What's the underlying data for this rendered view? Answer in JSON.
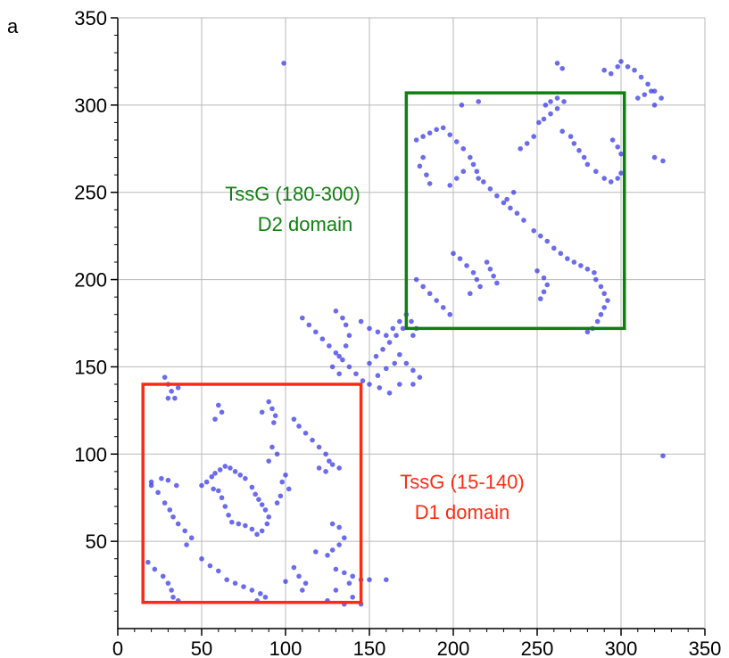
{
  "panel_label": "a",
  "chart_data": {
    "type": "scatter",
    "title": "",
    "xlabel": "",
    "ylabel": "",
    "xlim": [
      0,
      350
    ],
    "ylim": [
      0,
      350
    ],
    "xticks": [
      0,
      50,
      100,
      150,
      200,
      250,
      300,
      350
    ],
    "yticks": [
      50,
      100,
      150,
      200,
      250,
      300,
      350
    ],
    "grid": true,
    "point_color": "#3a3ae8",
    "domains": [
      {
        "name": "D1 domain",
        "label_line1": "TssG (15-140)",
        "label_line2": "D1 domain",
        "x_range": [
          15,
          145
        ],
        "y_range": [
          15,
          140
        ],
        "color": "#ff2a12"
      },
      {
        "name": "D2 domain",
        "label_line1": "TssG (180-300)",
        "label_line2": "D2 domain",
        "x_range": [
          172,
          302
        ],
        "y_range": [
          172,
          307
        ],
        "color": "#0f7f0f"
      }
    ],
    "point_clusters": [
      [
        [
          50,
          82
        ],
        [
          53,
          84
        ],
        [
          56,
          87
        ],
        [
          58,
          89
        ],
        [
          61,
          91
        ],
        [
          64,
          93
        ],
        [
          67,
          92
        ],
        [
          70,
          90
        ],
        [
          73,
          88
        ],
        [
          76,
          86
        ],
        [
          80,
          81
        ],
        [
          82,
          77
        ],
        [
          84,
          74
        ],
        [
          86,
          71
        ],
        [
          88,
          68
        ],
        [
          90,
          64
        ],
        [
          89,
          60
        ],
        [
          86,
          56
        ],
        [
          83,
          54
        ],
        [
          80,
          57
        ],
        [
          76,
          59
        ],
        [
          72,
          60
        ],
        [
          68,
          61
        ],
        [
          66,
          65
        ],
        [
          64,
          70
        ],
        [
          62,
          75
        ],
        [
          60,
          79
        ],
        [
          57,
          80
        ]
      ],
      [
        [
          50,
          40
        ],
        [
          55,
          36
        ],
        [
          60,
          33
        ],
        [
          65,
          28
        ],
        [
          70,
          26
        ],
        [
          75,
          24
        ],
        [
          80,
          22
        ],
        [
          85,
          20
        ],
        [
          88,
          18
        ],
        [
          83,
          16
        ]
      ],
      [
        [
          18,
          38
        ],
        [
          22,
          34
        ],
        [
          27,
          30
        ],
        [
          30,
          26
        ],
        [
          32,
          22
        ],
        [
          33,
          18
        ],
        [
          36,
          16
        ]
      ],
      [
        [
          20,
          82
        ],
        [
          24,
          78
        ],
        [
          28,
          72
        ],
        [
          31,
          68
        ],
        [
          33,
          64
        ],
        [
          36,
          60
        ],
        [
          40,
          56
        ],
        [
          44,
          52
        ],
        [
          41,
          48
        ]
      ],
      [
        [
          20,
          84
        ],
        [
          26,
          86
        ],
        [
          30,
          85
        ],
        [
          35,
          82
        ]
      ],
      [
        [
          28,
          144
        ],
        [
          30,
          140
        ],
        [
          32,
          136
        ],
        [
          34,
          132
        ],
        [
          36,
          138
        ],
        [
          30,
          132
        ]
      ],
      [
        [
          60,
          128
        ],
        [
          62,
          124
        ],
        [
          58,
          120
        ]
      ],
      [
        [
          90,
          130
        ],
        [
          92,
          126
        ],
        [
          94,
          122
        ],
        [
          93,
          118
        ],
        [
          86,
          124
        ]
      ],
      [
        [
          92,
          104
        ],
        [
          95,
          100
        ],
        [
          90,
          96
        ]
      ],
      [
        [
          100,
          88
        ],
        [
          98,
          84
        ],
        [
          102,
          80
        ],
        [
          97,
          76
        ],
        [
          95,
          72
        ]
      ],
      [
        [
          105,
          120
        ],
        [
          108,
          116
        ],
        [
          112,
          112
        ],
        [
          116,
          108
        ],
        [
          120,
          104
        ],
        [
          124,
          100
        ],
        [
          126,
          96
        ],
        [
          120,
          92
        ]
      ],
      [
        [
          128,
          94
        ],
        [
          132,
          92
        ],
        [
          124,
          90
        ]
      ],
      [
        [
          128,
          60
        ],
        [
          132,
          58
        ]
      ],
      [
        [
          130,
          34
        ],
        [
          135,
          32
        ],
        [
          140,
          30
        ],
        [
          145,
          28
        ],
        [
          138,
          26
        ],
        [
          150,
          28
        ]
      ],
      [
        [
          105,
          35
        ],
        [
          108,
          30
        ],
        [
          112,
          26
        ],
        [
          110,
          22
        ],
        [
          100,
          27
        ]
      ],
      [
        [
          135,
          52
        ],
        [
          132,
          48
        ],
        [
          128,
          45
        ],
        [
          125,
          42
        ],
        [
          118,
          44
        ]
      ],
      [
        [
          110,
          178
        ],
        [
          114,
          174
        ],
        [
          118,
          170
        ],
        [
          122,
          166
        ],
        [
          126,
          162
        ],
        [
          130,
          158
        ],
        [
          134,
          154
        ],
        [
          138,
          150
        ],
        [
          142,
          146
        ],
        [
          146,
          142
        ],
        [
          150,
          140
        ],
        [
          155,
          145
        ],
        [
          160,
          149
        ],
        [
          165,
          152
        ],
        [
          168,
          157
        ],
        [
          172,
          152
        ],
        [
          176,
          148
        ],
        [
          180,
          144
        ],
        [
          176,
          140
        ],
        [
          168,
          140
        ],
        [
          162,
          135
        ],
        [
          156,
          138
        ]
      ],
      [
        [
          130,
          182
        ],
        [
          134,
          178
        ],
        [
          136,
          174
        ],
        [
          138,
          168
        ],
        [
          136,
          162
        ],
        [
          132,
          156
        ],
        [
          128,
          150
        ],
        [
          132,
          146
        ]
      ],
      [
        [
          145,
          176
        ],
        [
          150,
          172
        ],
        [
          155,
          170
        ],
        [
          160,
          168
        ],
        [
          164,
          172
        ],
        [
          168,
          176
        ],
        [
          172,
          180
        ],
        [
          175,
          176
        ],
        [
          178,
          172
        ],
        [
          176,
          168
        ]
      ],
      [
        [
          150,
          152
        ],
        [
          154,
          156
        ],
        [
          158,
          160
        ],
        [
          162,
          164
        ],
        [
          166,
          168
        ],
        [
          170,
          172
        ]
      ],
      [
        [
          178,
          280
        ],
        [
          182,
          282
        ],
        [
          186,
          284
        ],
        [
          190,
          286
        ],
        [
          194,
          287
        ],
        [
          198,
          283
        ],
        [
          202,
          279
        ],
        [
          206,
          275
        ],
        [
          210,
          270
        ],
        [
          212,
          266
        ],
        [
          214,
          262
        ]
      ],
      [
        [
          182,
          270
        ],
        [
          180,
          265
        ],
        [
          184,
          260
        ],
        [
          186,
          255
        ]
      ],
      [
        [
          198,
          254
        ],
        [
          202,
          258
        ],
        [
          206,
          262
        ]
      ],
      [
        [
          215,
          258
        ],
        [
          218,
          256
        ],
        [
          222,
          252
        ],
        [
          226,
          248
        ],
        [
          230,
          244
        ],
        [
          234,
          241
        ],
        [
          238,
          238
        ],
        [
          242,
          234
        ]
      ],
      [
        [
          248,
          228
        ],
        [
          252,
          225
        ],
        [
          256,
          222
        ],
        [
          260,
          218
        ],
        [
          264,
          215
        ],
        [
          268,
          212
        ],
        [
          272,
          210
        ],
        [
          276,
          208
        ],
        [
          280,
          206
        ],
        [
          284,
          204
        ]
      ],
      [
        [
          178,
          200
        ],
        [
          182,
          196
        ],
        [
          186,
          192
        ],
        [
          190,
          188
        ],
        [
          194,
          184
        ],
        [
          198,
          180
        ]
      ],
      [
        [
          200,
          215
        ],
        [
          204,
          212
        ],
        [
          208,
          208
        ],
        [
          212,
          204
        ],
        [
          214,
          200
        ],
        [
          216,
          196
        ],
        [
          210,
          192
        ]
      ],
      [
        [
          220,
          210
        ],
        [
          222,
          206
        ],
        [
          224,
          202
        ],
        [
          226,
          198
        ]
      ],
      [
        [
          250,
          205
        ],
        [
          254,
          201
        ],
        [
          256,
          197
        ],
        [
          254,
          193
        ],
        [
          252,
          189
        ]
      ],
      [
        [
          255,
          300
        ],
        [
          258,
          302
        ],
        [
          262,
          304
        ],
        [
          266,
          302
        ],
        [
          262,
          298
        ],
        [
          258,
          295
        ],
        [
          254,
          292
        ],
        [
          251,
          290
        ]
      ],
      [
        [
          265,
          285
        ],
        [
          270,
          282
        ],
        [
          272,
          278
        ],
        [
          275,
          274
        ],
        [
          278,
          270
        ],
        [
          280,
          266
        ],
        [
          285,
          262
        ],
        [
          290,
          258
        ],
        [
          294,
          256
        ],
        [
          298,
          258
        ],
        [
          300,
          261
        ]
      ],
      [
        [
          295,
          280
        ],
        [
          298,
          276
        ],
        [
          300,
          272
        ]
      ],
      [
        [
          285,
          200
        ],
        [
          288,
          196
        ],
        [
          290,
          192
        ],
        [
          292,
          188
        ],
        [
          290,
          184
        ],
        [
          288,
          180
        ],
        [
          286,
          176
        ],
        [
          283,
          172
        ],
        [
          280,
          170
        ]
      ],
      [
        [
          262,
          324
        ],
        [
          265,
          321
        ]
      ],
      [
        [
          300,
          325
        ],
        [
          304,
          322
        ],
        [
          308,
          320
        ],
        [
          312,
          316
        ],
        [
          316,
          312
        ],
        [
          320,
          308
        ],
        [
          324,
          304
        ],
        [
          320,
          300
        ]
      ],
      [
        [
          310,
          304
        ],
        [
          314,
          306
        ],
        [
          318,
          308
        ]
      ],
      [
        [
          290,
          320
        ],
        [
          294,
          318
        ],
        [
          298,
          322
        ]
      ],
      [
        [
          240,
          275
        ],
        [
          244,
          278
        ],
        [
          248,
          282
        ]
      ],
      [
        [
          232,
          246
        ],
        [
          236,
          250
        ]
      ],
      [
        [
          130,
          22
        ],
        [
          140,
          18
        ],
        [
          145,
          14
        ],
        [
          135,
          14
        ],
        [
          125,
          16
        ]
      ],
      [
        [
          99,
          324
        ]
      ],
      [
        [
          325,
          99
        ]
      ],
      [
        [
          160,
          28
        ]
      ],
      [
        [
          325,
          268
        ],
        [
          320,
          270
        ]
      ],
      [
        [
          205,
          300
        ],
        [
          215,
          302
        ]
      ]
    ]
  }
}
